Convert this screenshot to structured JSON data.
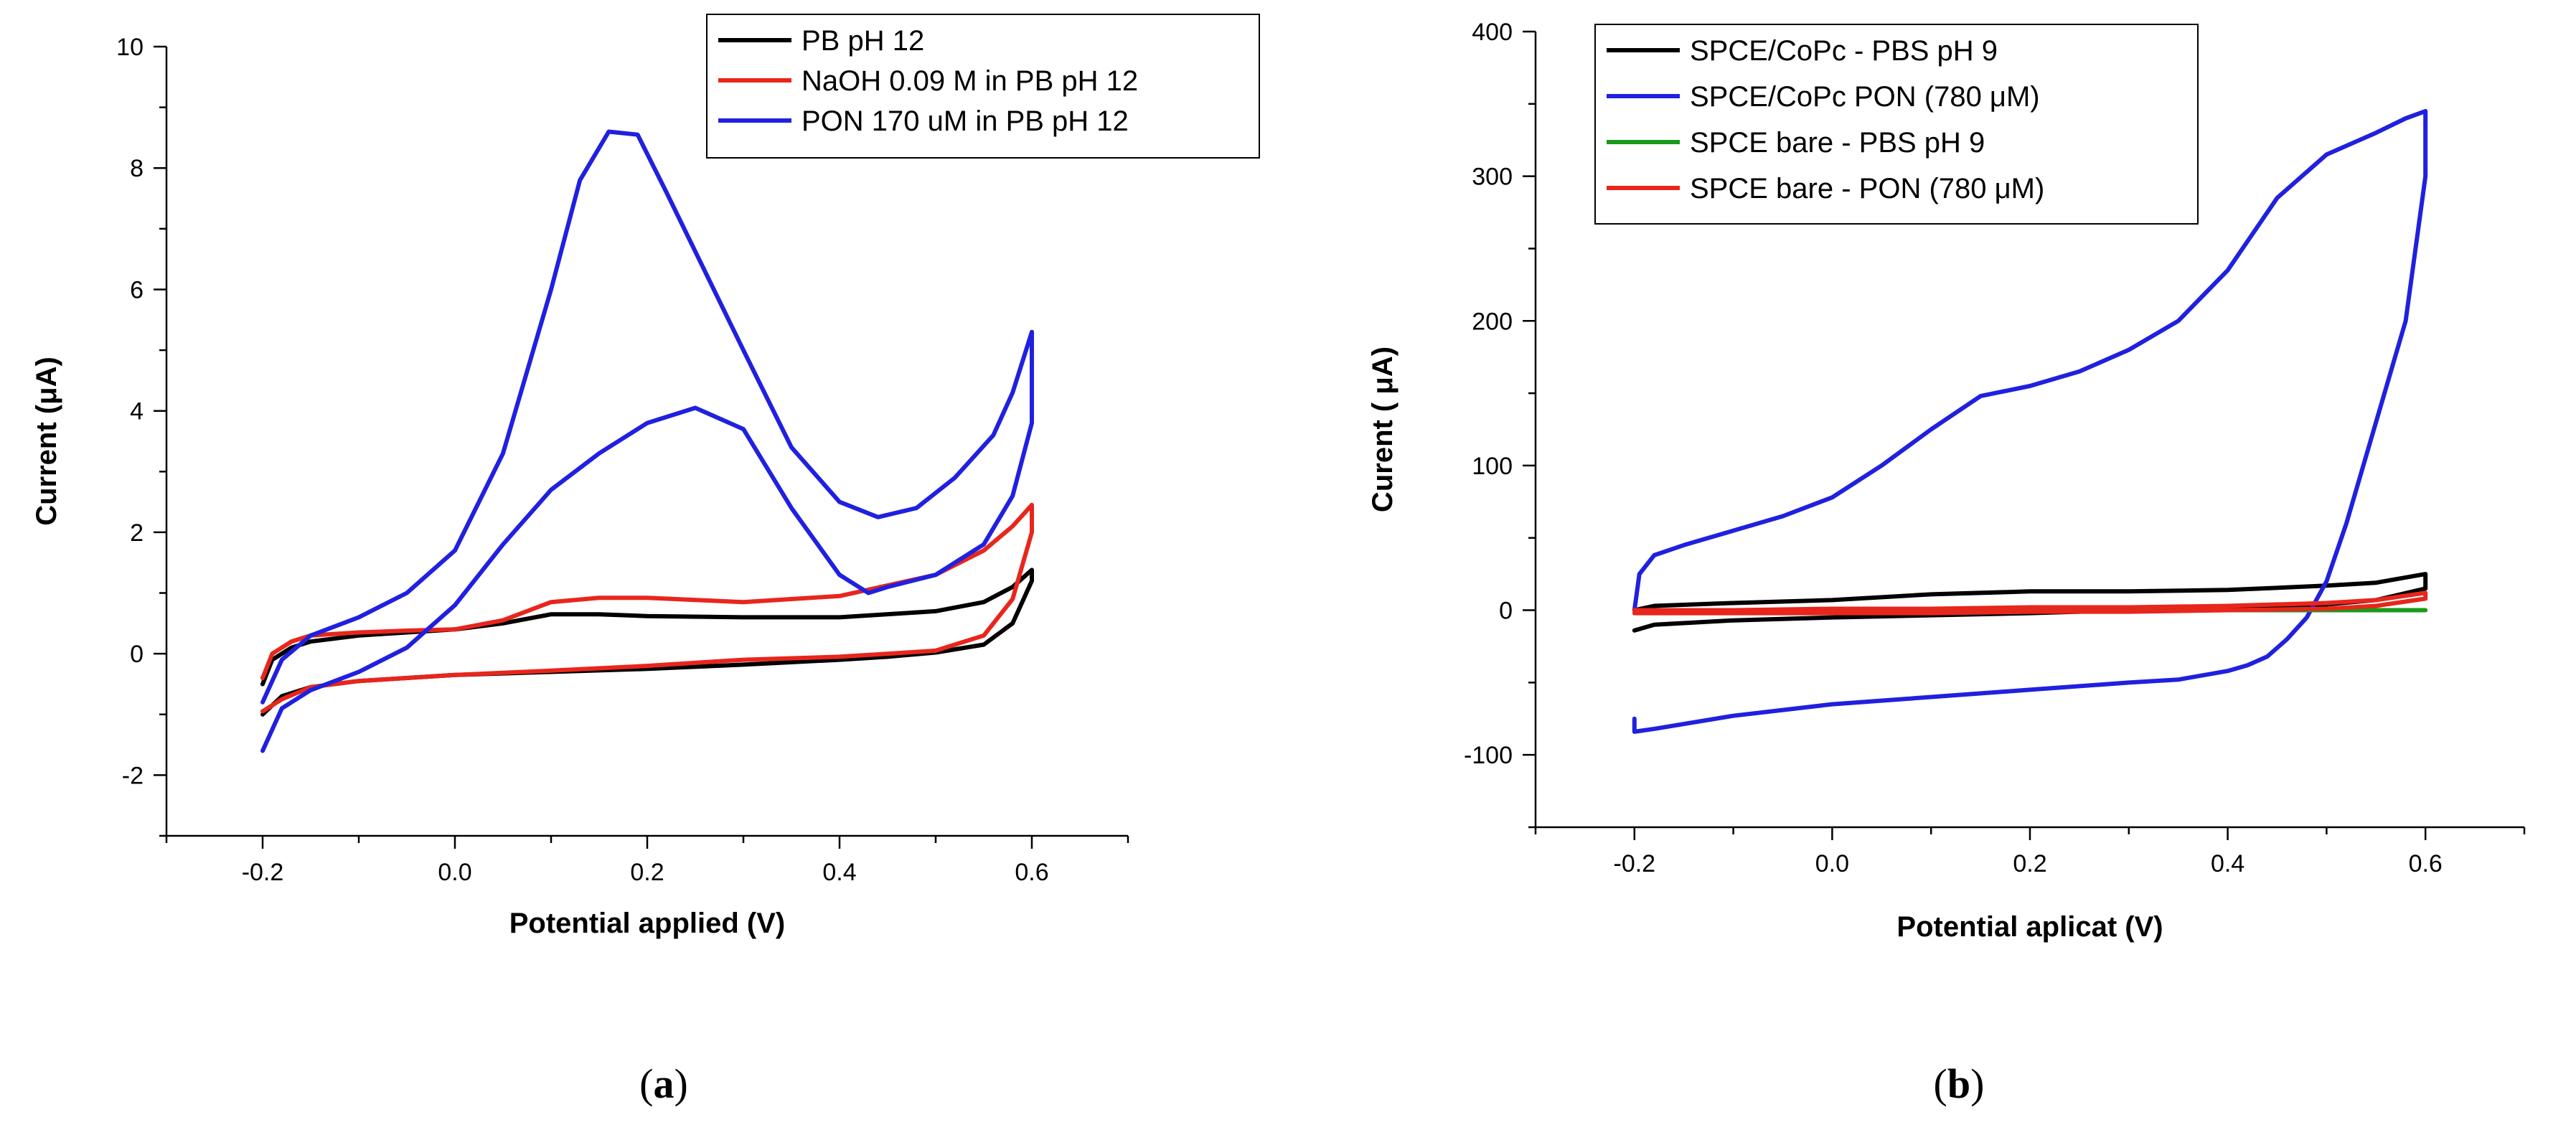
{
  "chart_data": [
    {
      "type": "line",
      "panel_label": "a",
      "xlabel": "Potential applied (V)",
      "ylabel": "Current (μA)",
      "xlim": [
        -0.3,
        0.7
      ],
      "ylim": [
        -3,
        10
      ],
      "xticks": [
        "-0.2",
        "0.0",
        "0.2",
        "0.4",
        "0.6"
      ],
      "yticks": [
        "-2",
        "0",
        "2",
        "4",
        "6",
        "8",
        "10"
      ],
      "grid": false,
      "legend_position": "top-right",
      "series": [
        {
          "name": "PB pH 12",
          "color": "#000000",
          "x": [
            -0.2,
            -0.19,
            -0.17,
            -0.15,
            -0.1,
            -0.05,
            0.0,
            0.05,
            0.1,
            0.15,
            0.2,
            0.3,
            0.4,
            0.5,
            0.55,
            0.58,
            0.6,
            0.6,
            0.58,
            0.55,
            0.5,
            0.45,
            0.4,
            0.3,
            0.2,
            0.1,
            0.0,
            -0.1,
            -0.15,
            -0.18,
            -0.2
          ],
          "y": [
            -0.5,
            -0.1,
            0.1,
            0.2,
            0.3,
            0.35,
            0.4,
            0.5,
            0.65,
            0.65,
            0.62,
            0.6,
            0.6,
            0.7,
            0.85,
            1.1,
            1.38,
            1.2,
            0.5,
            0.15,
            0.02,
            -0.05,
            -0.1,
            -0.18,
            -0.25,
            -0.3,
            -0.35,
            -0.45,
            -0.55,
            -0.7,
            -1.0
          ]
        },
        {
          "name": "NaOH 0.09 M in PB pH 12",
          "color": "#e8261c",
          "x": [
            -0.2,
            -0.19,
            -0.17,
            -0.15,
            -0.1,
            -0.05,
            0.0,
            0.05,
            0.1,
            0.15,
            0.2,
            0.3,
            0.4,
            0.5,
            0.55,
            0.58,
            0.6,
            0.6,
            0.58,
            0.55,
            0.5,
            0.45,
            0.4,
            0.3,
            0.2,
            0.1,
            0.0,
            -0.1,
            -0.15,
            -0.18,
            -0.2
          ],
          "y": [
            -0.4,
            0.0,
            0.2,
            0.3,
            0.35,
            0.38,
            0.4,
            0.55,
            0.85,
            0.92,
            0.92,
            0.85,
            0.95,
            1.3,
            1.7,
            2.1,
            2.45,
            2.0,
            0.9,
            0.3,
            0.05,
            0.0,
            -0.05,
            -0.1,
            -0.2,
            -0.28,
            -0.35,
            -0.45,
            -0.55,
            -0.75,
            -0.95
          ]
        },
        {
          "name": "PON 170 uM in PB pH 12",
          "color": "#2020e0",
          "x": [
            -0.2,
            -0.18,
            -0.15,
            -0.1,
            -0.05,
            0.0,
            0.05,
            0.1,
            0.13,
            0.16,
            0.19,
            0.22,
            0.26,
            0.3,
            0.35,
            0.4,
            0.44,
            0.48,
            0.52,
            0.56,
            0.58,
            0.6,
            0.6,
            0.58,
            0.55,
            0.5,
            0.45,
            0.43,
            0.4,
            0.35,
            0.3,
            0.25,
            0.2,
            0.15,
            0.1,
            0.05,
            0.0,
            -0.05,
            -0.1,
            -0.15,
            -0.18,
            -0.2
          ],
          "y": [
            -0.8,
            -0.1,
            0.3,
            0.6,
            1.0,
            1.7,
            3.3,
            6.0,
            7.8,
            8.6,
            8.55,
            7.6,
            6.3,
            5.0,
            3.4,
            2.5,
            2.25,
            2.4,
            2.9,
            3.6,
            4.3,
            5.3,
            3.8,
            2.6,
            1.8,
            1.3,
            1.1,
            1.0,
            1.3,
            2.4,
            3.7,
            4.05,
            3.8,
            3.3,
            2.7,
            1.8,
            0.8,
            0.1,
            -0.3,
            -0.6,
            -0.9,
            -1.6
          ]
        }
      ]
    },
    {
      "type": "line",
      "panel_label": "b",
      "xlabel": "Potential aplicat (V)",
      "ylabel": "Curent ( μA)",
      "xlim": [
        -0.3,
        0.7
      ],
      "ylim": [
        -150,
        400
      ],
      "xticks": [
        "-0.2",
        "0.0",
        "0.2",
        "0.4",
        "0.6"
      ],
      "yticks": [
        "-100",
        "0",
        "100",
        "200",
        "300",
        "400"
      ],
      "grid": false,
      "legend_position": "top-left",
      "series": [
        {
          "name": "SPCE/CoPc - PBS pH 9",
          "color": "#000000",
          "x": [
            -0.2,
            -0.18,
            -0.1,
            0.0,
            0.1,
            0.2,
            0.3,
            0.4,
            0.5,
            0.55,
            0.6,
            0.6,
            0.55,
            0.5,
            0.4,
            0.2,
            0.0,
            -0.1,
            -0.18,
            -0.2
          ],
          "y": [
            0,
            3,
            5,
            7,
            11,
            13,
            13,
            14,
            17,
            19,
            25,
            15,
            7,
            4,
            2,
            -2,
            -5,
            -7,
            -10,
            -14
          ]
        },
        {
          "name": "SPCE/CoPc PON (780 μM)",
          "color": "#2020e0",
          "x": [
            -0.2,
            -0.195,
            -0.18,
            -0.15,
            -0.1,
            -0.05,
            0.0,
            0.05,
            0.1,
            0.15,
            0.2,
            0.25,
            0.3,
            0.35,
            0.4,
            0.45,
            0.5,
            0.55,
            0.58,
            0.6,
            0.6,
            0.58,
            0.55,
            0.52,
            0.5,
            0.48,
            0.46,
            0.44,
            0.42,
            0.4,
            0.35,
            0.3,
            0.2,
            0.1,
            0.0,
            -0.1,
            -0.18,
            -0.2,
            -0.2
          ],
          "y": [
            0,
            25,
            38,
            45,
            55,
            65,
            78,
            100,
            125,
            148,
            155,
            165,
            180,
            200,
            235,
            285,
            315,
            330,
            340,
            345,
            300,
            200,
            130,
            60,
            20,
            -5,
            -20,
            -32,
            -38,
            -42,
            -48,
            -50,
            -55,
            -60,
            -65,
            -73,
            -82,
            -84,
            -75
          ]
        },
        {
          "name": "SPCE bare - PBS pH 9",
          "color": "#1a9a1a",
          "x": [
            -0.2,
            0.0,
            0.2,
            0.4,
            0.6
          ],
          "y": [
            0,
            0,
            0,
            0,
            0
          ]
        },
        {
          "name": "SPCE bare - PON (780 μM)",
          "color": "#e8261c",
          "x": [
            -0.2,
            -0.1,
            0.0,
            0.1,
            0.2,
            0.3,
            0.4,
            0.5,
            0.55,
            0.6,
            0.6,
            0.55,
            0.5,
            0.4,
            0.3,
            0.2,
            0.1,
            0.0,
            -0.1,
            -0.2
          ],
          "y": [
            0,
            0,
            1,
            1,
            2,
            2,
            3,
            5,
            7,
            12,
            8,
            3,
            1,
            0,
            -1,
            -1,
            -2,
            -2,
            -2,
            -2
          ]
        }
      ]
    }
  ]
}
